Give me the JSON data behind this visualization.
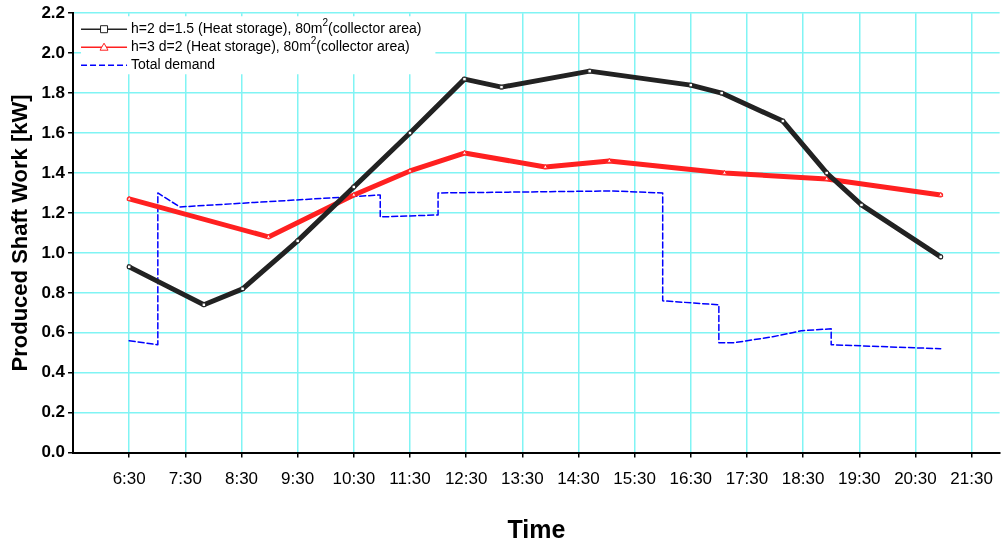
{
  "chart_data": {
    "type": "line",
    "xlabel": "Time",
    "ylabel": "Produced Shaft Work [kW]",
    "xlim": [
      5.5,
      22.0
    ],
    "xticks": [
      {
        "value": 6.5,
        "label": "6:30"
      },
      {
        "value": 7.5,
        "label": "7:30"
      },
      {
        "value": 8.5,
        "label": "8:30"
      },
      {
        "value": 9.5,
        "label": "9:30"
      },
      {
        "value": 10.5,
        "label": "10:30"
      },
      {
        "value": 11.5,
        "label": "11:30"
      },
      {
        "value": 12.5,
        "label": "12:30"
      },
      {
        "value": 13.5,
        "label": "13:30"
      },
      {
        "value": 14.5,
        "label": "14:30"
      },
      {
        "value": 15.5,
        "label": "15:30"
      },
      {
        "value": 16.5,
        "label": "16:30"
      },
      {
        "value": 17.5,
        "label": "17:30"
      },
      {
        "value": 18.5,
        "label": "18:30"
      },
      {
        "value": 19.5,
        "label": "19:30"
      },
      {
        "value": 20.5,
        "label": "20:30"
      },
      {
        "value": 21.5,
        "label": "21:30"
      }
    ],
    "ylim": [
      0,
      2.2
    ],
    "yticks": [
      {
        "value": 0,
        "label": "0.0"
      },
      {
        "value": 0.2,
        "label": "0.2"
      },
      {
        "value": 0.4,
        "label": "0.4"
      },
      {
        "value": 0.6,
        "label": "0.6"
      },
      {
        "value": 0.8,
        "label": "0.8"
      },
      {
        "value": 1.0,
        "label": "1.0"
      },
      {
        "value": 1.2,
        "label": "1.2"
      },
      {
        "value": 1.4,
        "label": "1.4"
      },
      {
        "value": 1.6,
        "label": "1.6"
      },
      {
        "value": 1.8,
        "label": "1.8"
      },
      {
        "value": 2.0,
        "label": "2.0"
      },
      {
        "value": 2.2,
        "label": "2.2"
      }
    ],
    "grid": true,
    "legend": "top left",
    "series": [
      {
        "name": "h=2 d=1.5 (Heat storage), 80m$^{2}$(collector area)",
        "color": "#222222",
        "marker": "square",
        "line_style": "solid",
        "x": [
          6.5,
          7.83,
          8.52,
          9.5,
          10.5,
          11.5,
          12.47,
          13.13,
          14.7,
          16.5,
          17.05,
          18.14,
          18.92,
          19.54,
          20.95
        ],
        "values": [
          0.93,
          0.74,
          0.82,
          1.06,
          1.33,
          1.6,
          1.87,
          1.83,
          1.91,
          1.84,
          1.8,
          1.66,
          1.4,
          1.24,
          0.98
        ]
      },
      {
        "name": "h=3 d=2 (Heat storage), 80m$^{2}$(collector area)",
        "color": "#ff2020",
        "marker": "triangle",
        "line_style": "solid",
        "x": [
          6.5,
          8.98,
          10.5,
          11.5,
          12.47,
          13.91,
          15.05,
          17.1,
          18.92,
          20.95
        ],
        "values": [
          1.27,
          1.08,
          1.29,
          1.41,
          1.5,
          1.43,
          1.46,
          1.4,
          1.37,
          1.29
        ]
      },
      {
        "name": "Total demand",
        "color": "#0000ff",
        "marker": "none",
        "line_style": "dashed",
        "x": [
          6.5,
          7.01,
          7.01,
          7.4,
          10.97,
          10.97,
          12.0,
          12.0,
          15.1,
          16.0,
          16.0,
          17.0,
          17.0,
          17.27,
          17.96,
          18.47,
          19.0,
          19.0,
          20.95
        ],
        "values": [
          0.56,
          0.54,
          1.3,
          1.23,
          1.29,
          1.18,
          1.19,
          1.3,
          1.31,
          1.3,
          0.76,
          0.74,
          0.55,
          0.55,
          0.58,
          0.61,
          0.62,
          0.54,
          0.52
        ]
      }
    ]
  }
}
